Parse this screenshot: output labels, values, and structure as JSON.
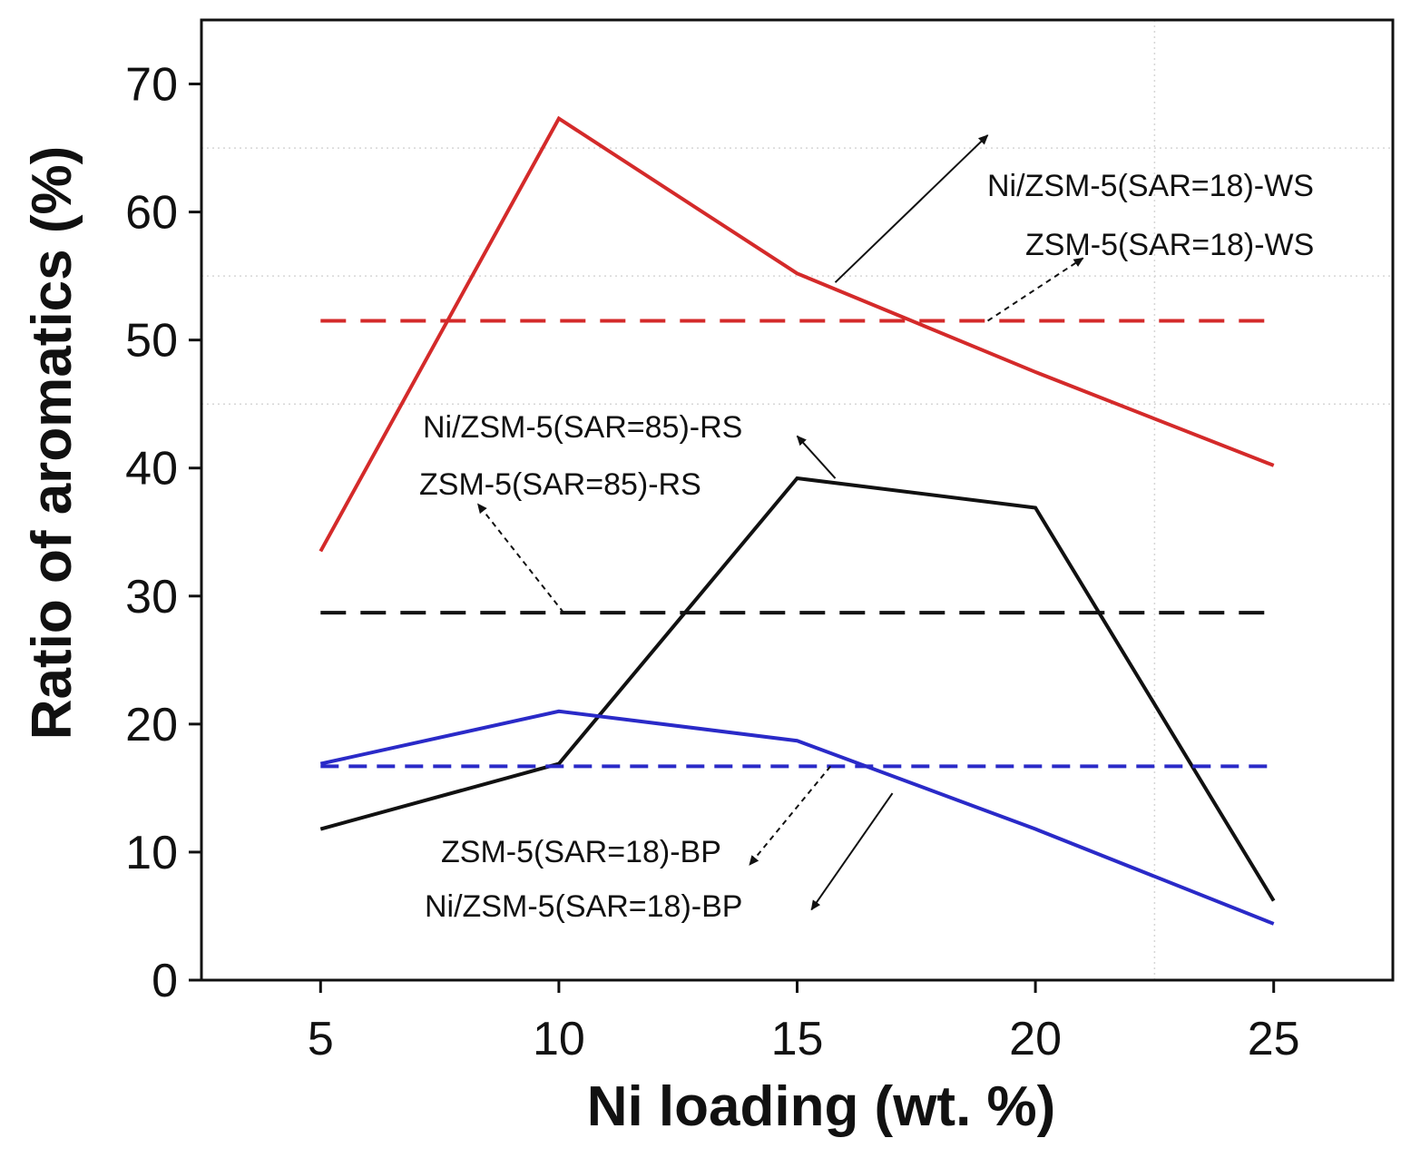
{
  "chart_data": {
    "type": "line",
    "title": "",
    "xlabel": "Ni loading (wt. %)",
    "ylabel": "Ratio of aromatics (%)",
    "xlim": [
      2.5,
      27.5
    ],
    "ylim": [
      0,
      75
    ],
    "x": [
      5,
      10,
      15,
      20,
      25
    ],
    "xticks": [
      "5",
      "10",
      "15",
      "20",
      "25"
    ],
    "yticks": [
      "0",
      "10",
      "20",
      "30",
      "40",
      "50",
      "60",
      "70"
    ],
    "series": [
      {
        "name": "Ni/ZSM-5(SAR=18)-WS",
        "color": "#d42a2a",
        "style": "solid",
        "values": [
          33.5,
          67.3,
          55.2,
          47.5,
          40.2
        ]
      },
      {
        "name": "ZSM-5(SAR=18)-WS",
        "color": "#d42a2a",
        "style": "dashed",
        "values": [
          51.5,
          51.5,
          51.5,
          51.5,
          51.5
        ]
      },
      {
        "name": "Ni/ZSM-5(SAR=85)-RS",
        "color": "#111111",
        "style": "solid",
        "values": [
          11.8,
          16.9,
          39.2,
          36.9,
          6.2
        ]
      },
      {
        "name": "ZSM-5(SAR=85)-RS",
        "color": "#111111",
        "style": "dashed",
        "values": [
          28.7,
          28.7,
          28.7,
          28.7,
          28.7
        ]
      },
      {
        "name": "Ni/ZSM-5(SAR=18)-BP",
        "color": "#2a2ac8",
        "style": "solid",
        "values": [
          16.9,
          21.0,
          18.7,
          11.8,
          4.4
        ]
      },
      {
        "name": "ZSM-5(SAR=18)-BP",
        "color": "#2a2ac8",
        "style": "dashed",
        "values": [
          16.7,
          16.7,
          16.7,
          16.7,
          16.7
        ]
      }
    ],
    "annotations": [
      {
        "text": "Ni/ZSM-5(SAR=18)-WS",
        "from": [
          15.8,
          54.5
        ],
        "to": [
          19.0,
          66.0
        ],
        "line": "solid"
      },
      {
        "text": "ZSM-5(SAR=18)-WS",
        "from": [
          19.0,
          51.5
        ],
        "to": [
          21.0,
          56.4
        ],
        "line": "dashed"
      },
      {
        "text": "Ni/ZSM-5(SAR=85)-RS",
        "from": [
          15.8,
          39.2
        ],
        "to": [
          15.0,
          42.5
        ],
        "line": "solid"
      },
      {
        "text": "ZSM-5(SAR=85)-RS",
        "from": [
          10.1,
          28.7
        ],
        "to": [
          8.3,
          37.2
        ],
        "line": "dashed"
      },
      {
        "text": "ZSM-5(SAR=18)-BP",
        "from": [
          15.7,
          16.7
        ],
        "to": [
          14.0,
          9.0
        ],
        "line": "dashed"
      },
      {
        "text": "Ni/ZSM-5(SAR=18)-BP",
        "from": [
          17.0,
          14.6
        ],
        "to": [
          15.3,
          5.5
        ],
        "line": "solid"
      }
    ]
  }
}
